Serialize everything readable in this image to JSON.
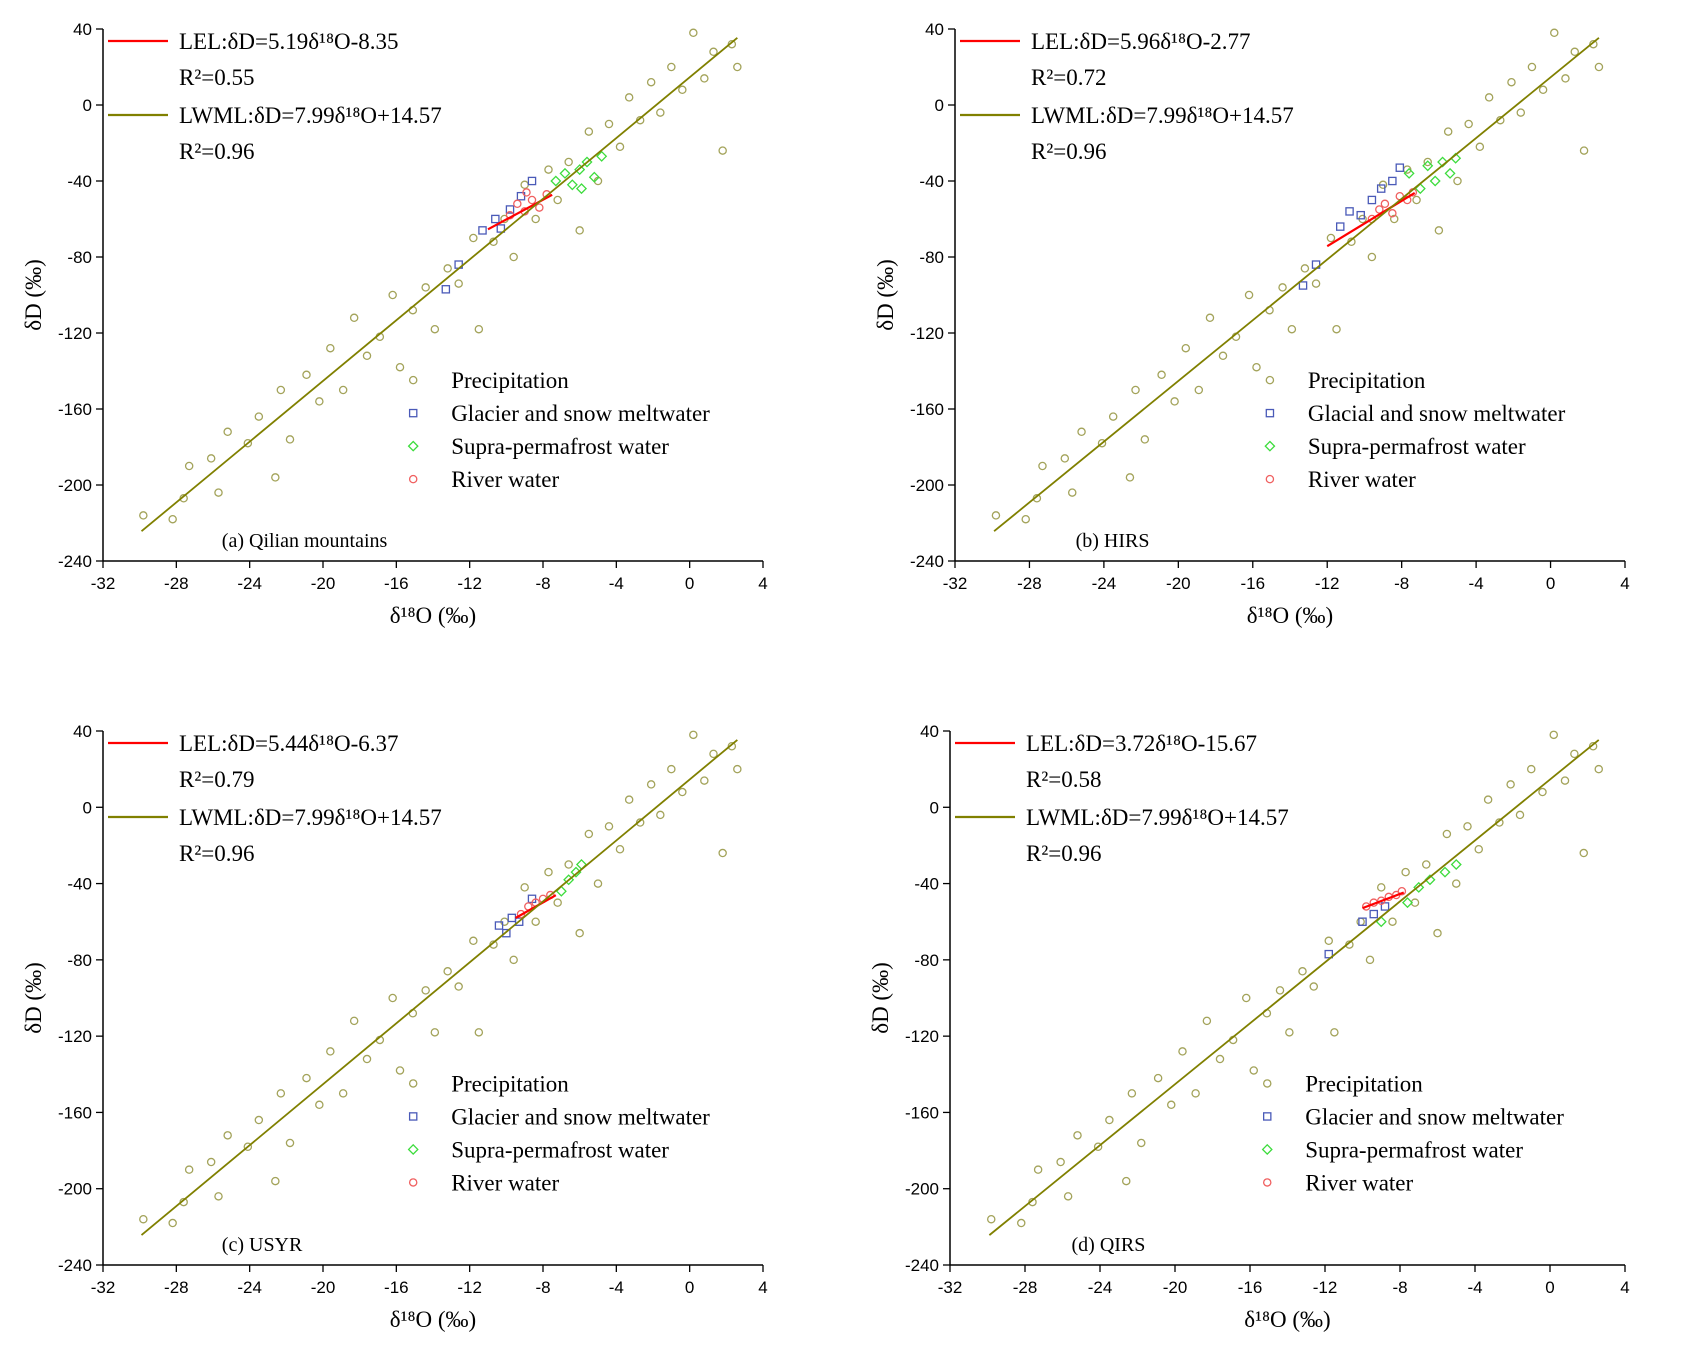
{
  "chart_data": [
    {
      "type": "scatter",
      "panel_label": "(a) Qilian mountains",
      "x_label": "δ¹⁸O (‰)",
      "y_label": "δD (‰)",
      "xlim": [
        -32,
        4
      ],
      "xticks": [
        -32,
        -28,
        -24,
        -20,
        -16,
        -12,
        -8,
        -4,
        0,
        4
      ],
      "ylim": [
        -240,
        40
      ],
      "yticks": [
        -240,
        -200,
        -160,
        -120,
        -80,
        -40,
        0,
        40
      ],
      "series": [
        {
          "name": "Precipitation",
          "color": "#a3a35a",
          "marker": "circle",
          "x": [
            -29.8,
            -28.2,
            -27.6,
            -27.3,
            -26.1,
            -25.7,
            -25.2,
            -24.1,
            -23.5,
            -22.6,
            -22.3,
            -21.8,
            -20.9,
            -20.2,
            -19.6,
            -18.9,
            -18.3,
            -17.6,
            -16.9,
            -16.2,
            -15.8,
            -15.1,
            -14.4,
            -13.9,
            -13.2,
            -12.6,
            -11.8,
            -11.5,
            -10.7,
            -10.1,
            -9.6,
            -9.0,
            -8.4,
            -7.7,
            -7.2,
            -6.6,
            -6.0,
            -5.5,
            -5.0,
            -4.4,
            -3.8,
            -3.3,
            -2.7,
            -2.1,
            -1.6,
            -1.0,
            -0.4,
            0.2,
            0.8,
            1.3,
            1.8,
            2.3,
            2.6
          ],
          "y": [
            -216,
            -218,
            -207,
            -190,
            -186,
            -204,
            -172,
            -178,
            -164,
            -196,
            -150,
            -176,
            -142,
            -156,
            -128,
            -150,
            -112,
            -132,
            -122,
            -100,
            -138,
            -108,
            -96,
            -118,
            -86,
            -94,
            -70,
            -118,
            -72,
            -60,
            -80,
            -42,
            -60,
            -34,
            -50,
            -30,
            -66,
            -14,
            -40,
            -10,
            -22,
            4,
            -8,
            12,
            -4,
            20,
            8,
            38,
            14,
            28,
            -24,
            32,
            20
          ]
        },
        {
          "name": "Glacier and snow meltwater",
          "color": "#4a5ab8",
          "marker": "square",
          "x": [
            -13.3,
            -12.6,
            -11.3,
            -10.6,
            -10.3,
            -9.8,
            -9.2,
            -8.6
          ],
          "y": [
            -97,
            -84,
            -66,
            -60,
            -65,
            -55,
            -48,
            -40
          ]
        },
        {
          "name": "Supra-permafrost water",
          "color": "#3ddc3d",
          "marker": "diamond",
          "x": [
            -7.3,
            -6.8,
            -6.4,
            -6.0,
            -5.9,
            -5.6,
            -5.2,
            -4.8
          ],
          "y": [
            -40,
            -36,
            -42,
            -34,
            -44,
            -30,
            -38,
            -27
          ]
        },
        {
          "name": "River water",
          "color": "#f06060",
          "marker": "circle",
          "x": [
            -9.8,
            -9.4,
            -9.0,
            -8.9,
            -8.6,
            -8.2,
            -7.8
          ],
          "y": [
            -58,
            -52,
            -56,
            -46,
            -50,
            -54,
            -47
          ]
        },
        {
          "name": "LEL:δD=5.19δ¹⁸O-8.35",
          "r2_label": "R²=0.55",
          "color": "#ff0000",
          "mode": "line",
          "x": [
            -11,
            -7.5
          ],
          "y": [
            -65.44,
            -47.28
          ]
        },
        {
          "name": "LWML:δD=7.99δ¹⁸O+14.57",
          "r2_label": "R²=0.96",
          "color": "#808000",
          "mode": "line",
          "x": [
            -29.9,
            2.6
          ],
          "y": [
            -224.33,
            35.34
          ]
        }
      ]
    },
    {
      "type": "scatter",
      "panel_label": "(b) HIRS",
      "x_label": "δ¹⁸O (‰)",
      "y_label": "δD (‰)",
      "xlim": [
        -32,
        4
      ],
      "xticks": [
        -32,
        -28,
        -24,
        -20,
        -16,
        -12,
        -8,
        -4,
        0,
        4
      ],
      "ylim": [
        -240,
        40
      ],
      "yticks": [
        -240,
        -200,
        -160,
        -120,
        -80,
        -40,
        0,
        40
      ],
      "series": [
        {
          "name": "Precipitation",
          "color": "#a3a35a",
          "marker": "circle",
          "x": [
            -29.8,
            -28.2,
            -27.6,
            -27.3,
            -26.1,
            -25.7,
            -25.2,
            -24.1,
            -23.5,
            -22.6,
            -22.3,
            -21.8,
            -20.9,
            -20.2,
            -19.6,
            -18.9,
            -18.3,
            -17.6,
            -16.9,
            -16.2,
            -15.8,
            -15.1,
            -14.4,
            -13.9,
            -13.2,
            -12.6,
            -11.8,
            -11.5,
            -10.7,
            -10.1,
            -9.6,
            -9.0,
            -8.4,
            -7.7,
            -7.2,
            -6.6,
            -6.0,
            -5.5,
            -5.0,
            -4.4,
            -3.8,
            -3.3,
            -2.7,
            -2.1,
            -1.6,
            -1.0,
            -0.4,
            0.2,
            0.8,
            1.3,
            1.8,
            2.3,
            2.6
          ],
          "y": [
            -216,
            -218,
            -207,
            -190,
            -186,
            -204,
            -172,
            -178,
            -164,
            -196,
            -150,
            -176,
            -142,
            -156,
            -128,
            -150,
            -112,
            -132,
            -122,
            -100,
            -138,
            -108,
            -96,
            -118,
            -86,
            -94,
            -70,
            -118,
            -72,
            -60,
            -80,
            -42,
            -60,
            -34,
            -50,
            -30,
            -66,
            -14,
            -40,
            -10,
            -22,
            4,
            -8,
            12,
            -4,
            20,
            8,
            38,
            14,
            28,
            -24,
            32,
            20
          ]
        },
        {
          "name": "Glacial and snow meltwater",
          "color": "#4a5ab8",
          "marker": "square",
          "x": [
            -13.3,
            -12.6,
            -11.3,
            -10.8,
            -10.2,
            -9.6,
            -9.1,
            -8.5,
            -8.1
          ],
          "y": [
            -95,
            -84,
            -64,
            -56,
            -58,
            -50,
            -44,
            -40,
            -33
          ]
        },
        {
          "name": "Supra-permafrost water",
          "color": "#3ddc3d",
          "marker": "diamond",
          "x": [
            -7.6,
            -7.0,
            -6.6,
            -6.2,
            -5.8,
            -5.4,
            -5.1
          ],
          "y": [
            -36,
            -44,
            -32,
            -40,
            -30,
            -36,
            -28
          ]
        },
        {
          "name": "River water",
          "color": "#f06060",
          "marker": "circle",
          "x": [
            -9.6,
            -9.2,
            -8.9,
            -8.5,
            -8.1,
            -7.7,
            -7.4
          ],
          "y": [
            -60,
            -55,
            -52,
            -57,
            -48,
            -50,
            -46
          ]
        },
        {
          "name": "LEL:δD=5.96δ¹⁸O-2.77",
          "r2_label": "R²=0.72",
          "color": "#ff0000",
          "mode": "line",
          "x": [
            -12,
            -7.3
          ],
          "y": [
            -74.29,
            -46.28
          ]
        },
        {
          "name": "LWML:δD=7.99δ¹⁸O+14.57",
          "r2_label": "R²=0.96",
          "color": "#808000",
          "mode": "line",
          "x": [
            -29.9,
            2.6
          ],
          "y": [
            -224.33,
            35.34
          ]
        }
      ]
    },
    {
      "type": "scatter",
      "panel_label": "(c) USYR",
      "x_label": "δ¹⁸O (‰)",
      "y_label": "δD (‰)",
      "xlim": [
        -32,
        4
      ],
      "xticks": [
        -32,
        -28,
        -24,
        -20,
        -16,
        -12,
        -8,
        -4,
        0,
        4
      ],
      "ylim": [
        -240,
        40
      ],
      "yticks": [
        -240,
        -200,
        -160,
        -120,
        -80,
        -40,
        0,
        40
      ],
      "series": [
        {
          "name": "Precipitation",
          "color": "#a3a35a",
          "marker": "circle",
          "x": [
            -29.8,
            -28.2,
            -27.6,
            -27.3,
            -26.1,
            -25.7,
            -25.2,
            -24.1,
            -23.5,
            -22.6,
            -22.3,
            -21.8,
            -20.9,
            -20.2,
            -19.6,
            -18.9,
            -18.3,
            -17.6,
            -16.9,
            -16.2,
            -15.8,
            -15.1,
            -14.4,
            -13.9,
            -13.2,
            -12.6,
            -11.8,
            -11.5,
            -10.7,
            -10.1,
            -9.6,
            -9.0,
            -8.4,
            -7.7,
            -7.2,
            -6.6,
            -6.0,
            -5.5,
            -5.0,
            -4.4,
            -3.8,
            -3.3,
            -2.7,
            -2.1,
            -1.6,
            -1.0,
            -0.4,
            0.2,
            0.8,
            1.3,
            1.8,
            2.3,
            2.6
          ],
          "y": [
            -216,
            -218,
            -207,
            -190,
            -186,
            -204,
            -172,
            -178,
            -164,
            -196,
            -150,
            -176,
            -142,
            -156,
            -128,
            -150,
            -112,
            -132,
            -122,
            -100,
            -138,
            -108,
            -96,
            -118,
            -86,
            -94,
            -70,
            -118,
            -72,
            -60,
            -80,
            -42,
            -60,
            -34,
            -50,
            -30,
            -66,
            -14,
            -40,
            -10,
            -22,
            4,
            -8,
            12,
            -4,
            20,
            8,
            38,
            14,
            28,
            -24,
            32,
            20
          ]
        },
        {
          "name": "Glacier and snow meltwater",
          "color": "#4a5ab8",
          "marker": "square",
          "x": [
            -10.4,
            -10.0,
            -9.7,
            -9.3,
            -8.6
          ],
          "y": [
            -62,
            -66,
            -58,
            -60,
            -48
          ]
        },
        {
          "name": "Supra-permafrost water",
          "color": "#3ddc3d",
          "marker": "diamond",
          "x": [
            -7.0,
            -6.6,
            -6.2,
            -5.9
          ],
          "y": [
            -44,
            -38,
            -34,
            -30
          ]
        },
        {
          "name": "River water",
          "color": "#f06060",
          "marker": "circle",
          "x": [
            -9.2,
            -8.8,
            -8.4,
            -8.0,
            -7.6
          ],
          "y": [
            -56,
            -52,
            -50,
            -48,
            -46
          ]
        },
        {
          "name": "LEL:δD=5.44δ¹⁸O-6.37",
          "r2_label": "R²=0.79",
          "color": "#ff0000",
          "mode": "line",
          "x": [
            -9.5,
            -7.3
          ],
          "y": [
            -58.05,
            -46.08
          ]
        },
        {
          "name": "LWML:δD=7.99δ¹⁸O+14.57",
          "r2_label": "R²=0.96",
          "color": "#808000",
          "mode": "line",
          "x": [
            -29.9,
            2.6
          ],
          "y": [
            -224.33,
            35.34
          ]
        }
      ]
    },
    {
      "type": "scatter",
      "panel_label": "(d)  QIRS",
      "x_label": "δ¹⁸O (‰)",
      "y_label": "δD (‰)",
      "xlim": [
        -32,
        4
      ],
      "xticks": [
        -32,
        -28,
        -24,
        -20,
        -16,
        -12,
        -8,
        -4,
        0,
        4
      ],
      "ylim": [
        -240,
        40
      ],
      "yticks": [
        -240,
        -200,
        -160,
        -120,
        -80,
        -40,
        0,
        40
      ],
      "series": [
        {
          "name": "Precipitation",
          "color": "#a3a35a",
          "marker": "circle",
          "x": [
            -29.8,
            -28.2,
            -27.6,
            -27.3,
            -26.1,
            -25.7,
            -25.2,
            -24.1,
            -23.5,
            -22.6,
            -22.3,
            -21.8,
            -20.9,
            -20.2,
            -19.6,
            -18.9,
            -18.3,
            -17.6,
            -16.9,
            -16.2,
            -15.8,
            -15.1,
            -14.4,
            -13.9,
            -13.2,
            -12.6,
            -11.8,
            -11.5,
            -10.7,
            -10.1,
            -9.6,
            -9.0,
            -8.4,
            -7.7,
            -7.2,
            -6.6,
            -6.0,
            -5.5,
            -5.0,
            -4.4,
            -3.8,
            -3.3,
            -2.7,
            -2.1,
            -1.6,
            -1.0,
            -0.4,
            0.2,
            0.8,
            1.3,
            1.8,
            2.3,
            2.6
          ],
          "y": [
            -216,
            -218,
            -207,
            -190,
            -186,
            -204,
            -172,
            -178,
            -164,
            -196,
            -150,
            -176,
            -142,
            -156,
            -128,
            -150,
            -112,
            -132,
            -122,
            -100,
            -138,
            -108,
            -96,
            -118,
            -86,
            -94,
            -70,
            -118,
            -72,
            -60,
            -80,
            -42,
            -60,
            -34,
            -50,
            -30,
            -66,
            -14,
            -40,
            -10,
            -22,
            4,
            -8,
            12,
            -4,
            20,
            8,
            38,
            14,
            28,
            -24,
            32,
            20
          ]
        },
        {
          "name": "Glacier and snow meltwater",
          "color": "#4a5ab8",
          "marker": "square",
          "x": [
            -11.8,
            -10.0,
            -9.4,
            -8.8
          ],
          "y": [
            -77,
            -60,
            -56,
            -52
          ]
        },
        {
          "name": "Supra-permafrost water",
          "color": "#3ddc3d",
          "marker": "diamond",
          "x": [
            -9.0,
            -7.6,
            -7.0,
            -6.4,
            -5.6,
            -5.0
          ],
          "y": [
            -60,
            -50,
            -42,
            -38,
            -34,
            -30
          ]
        },
        {
          "name": "River water",
          "color": "#f06060",
          "marker": "circle",
          "x": [
            -9.8,
            -9.4,
            -9.0,
            -8.6,
            -8.2,
            -7.9
          ],
          "y": [
            -52,
            -50,
            -49,
            -47,
            -46,
            -44
          ]
        },
        {
          "name": "LEL:δD=3.72δ¹⁸O-15.67",
          "r2_label": "R²=0.58",
          "color": "#ff0000",
          "mode": "line",
          "x": [
            -10,
            -7.8
          ],
          "y": [
            -52.87,
            -44.69
          ]
        },
        {
          "name": "LWML:δD=7.99δ¹⁸O+14.57",
          "r2_label": "R²=0.96",
          "color": "#808000",
          "mode": "line",
          "x": [
            -29.9,
            2.6
          ],
          "y": [
            -224.33,
            35.34
          ]
        }
      ]
    }
  ]
}
